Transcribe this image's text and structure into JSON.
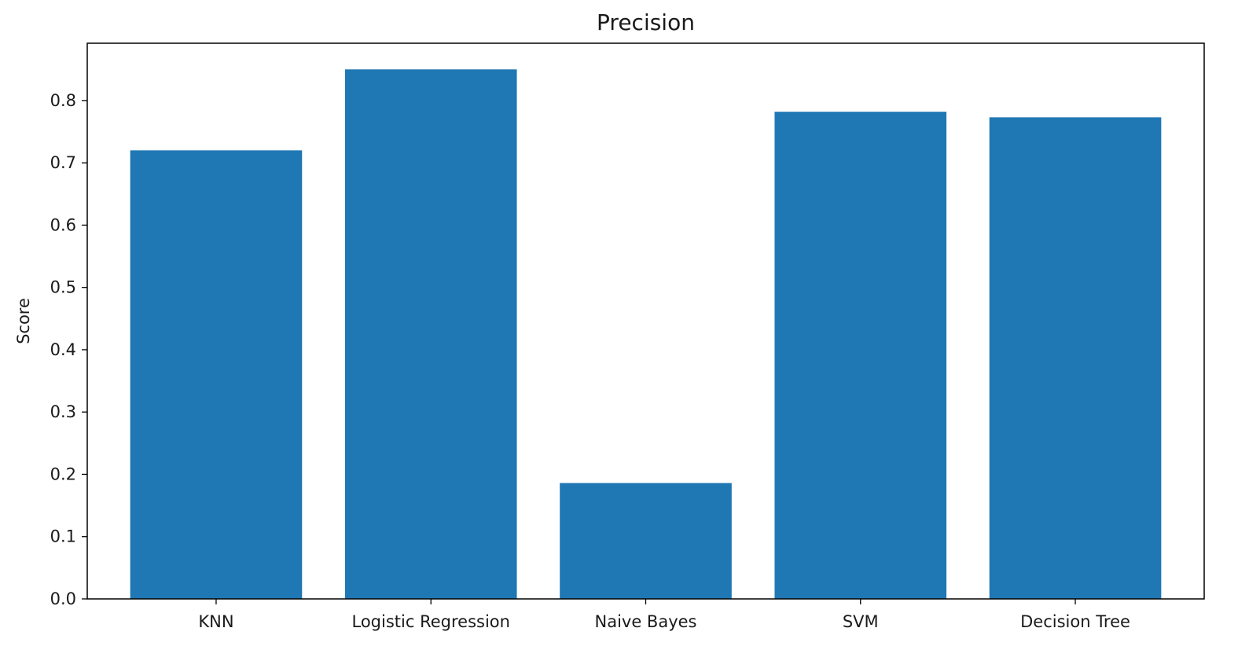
{
  "chart_data": {
    "type": "bar",
    "title": "Precision",
    "xlabel": "",
    "ylabel": "Score",
    "categories": [
      "KNN",
      "Logistic Regression",
      "Naive Bayes",
      "SVM",
      "Decision Tree"
    ],
    "values": [
      0.72,
      0.85,
      0.186,
      0.782,
      0.773
    ],
    "ylim": [
      0,
      0.892
    ],
    "yticks": [
      0.0,
      0.1,
      0.2,
      0.3,
      0.4,
      0.5,
      0.6,
      0.7,
      0.8
    ],
    "ytick_labels": [
      "0.0",
      "0.1",
      "0.2",
      "0.3",
      "0.4",
      "0.5",
      "0.6",
      "0.7",
      "0.8"
    ],
    "bar_color": "#1f77b4",
    "grid": false,
    "legend": null
  }
}
